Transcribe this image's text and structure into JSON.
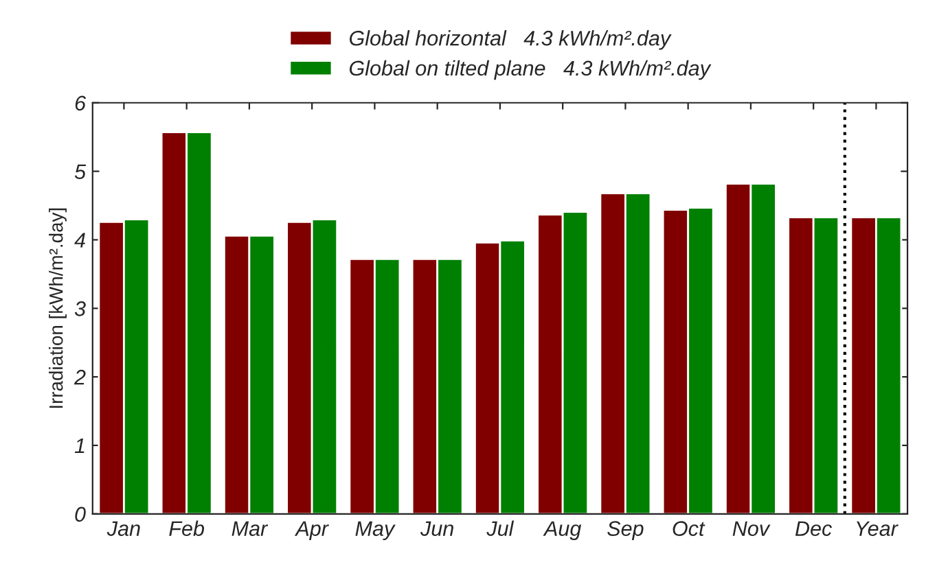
{
  "chart_data": {
    "type": "bar",
    "ylabel": "Irradiation [kWh/m².day]",
    "categories": [
      "Jan",
      "Feb",
      "Mar",
      "Apr",
      "May",
      "Jun",
      "Jul",
      "Aug",
      "Sep",
      "Oct",
      "Nov",
      "Dec",
      "Year"
    ],
    "series": [
      {
        "name": "Global horizontal   4.3 kWh/m².day",
        "color": "#800000",
        "values": [
          4.26,
          5.57,
          4.06,
          4.26,
          3.72,
          3.72,
          3.96,
          4.37,
          4.68,
          4.44,
          4.82,
          4.33,
          4.33
        ]
      },
      {
        "name": "Global on tilted plane   4.3 kWh/m².day",
        "color": "#008000",
        "values": [
          4.3,
          5.57,
          4.06,
          4.3,
          3.72,
          3.72,
          3.99,
          4.41,
          4.68,
          4.47,
          4.82,
          4.33,
          4.33
        ]
      }
    ],
    "ylim": [
      0,
      6
    ],
    "yticks": [
      0,
      1,
      2,
      3,
      4,
      5,
      6
    ],
    "grid": false,
    "legend": "top"
  }
}
